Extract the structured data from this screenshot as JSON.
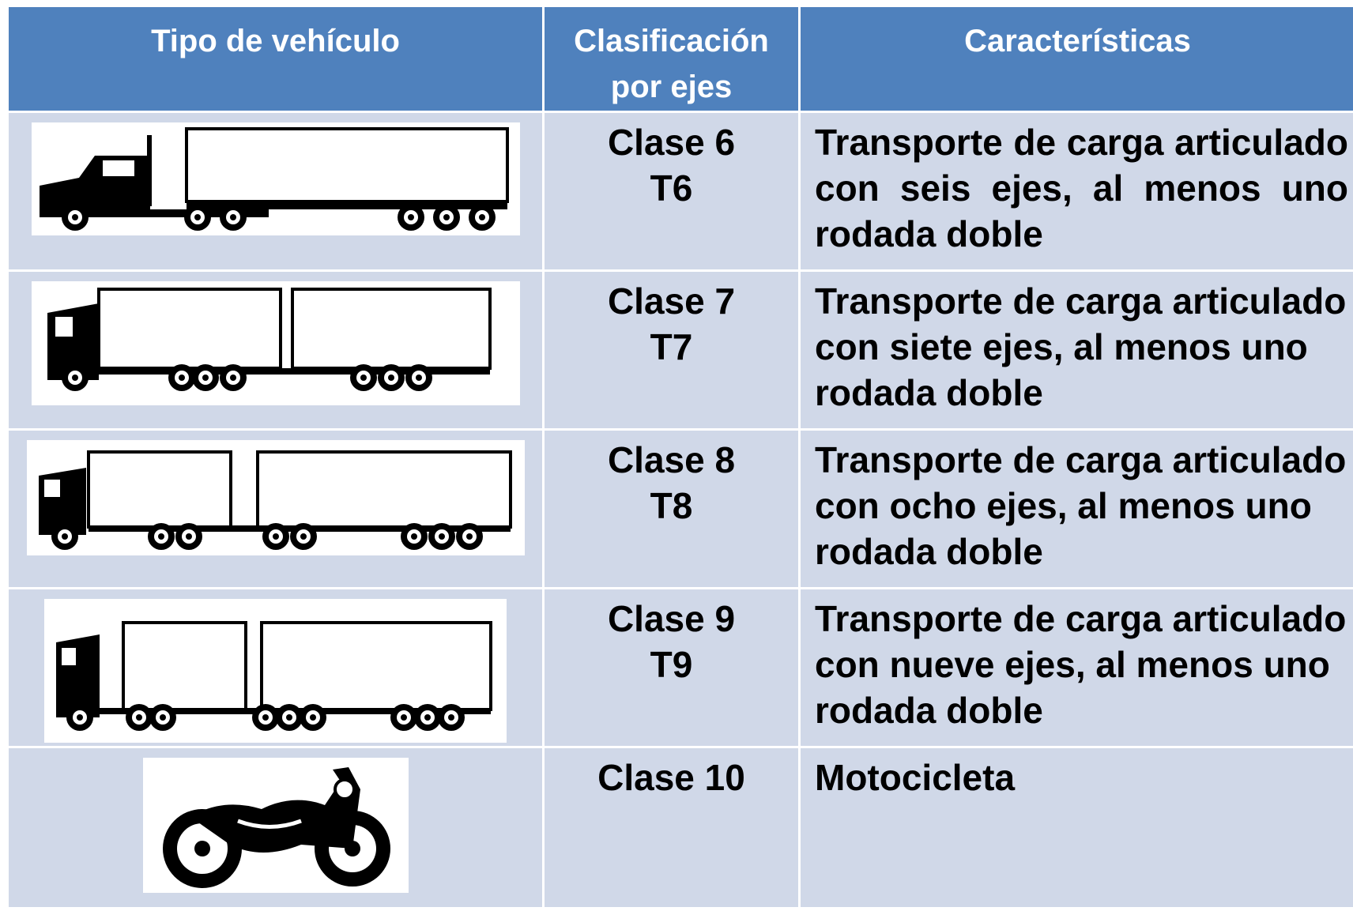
{
  "table": {
    "header": [
      "Tipo de vehículo",
      "Clasificación por ejes",
      "Características"
    ],
    "rows": [
      {
        "clase": "Clase 6",
        "code": "T6",
        "desc": "Transporte de carga articulado con seis ejes, al menos uno rodada doble"
      },
      {
        "clase": "Clase 7",
        "code": "T7",
        "desc": "Transporte de carga articulado con siete ejes, al menos uno rodada doble"
      },
      {
        "clase": "Clase 8",
        "code": "T8",
        "desc": "Transporte de carga articulado con ocho ejes, al menos uno rodada doble"
      },
      {
        "clase": "Clase 9",
        "code": "T9",
        "desc": "Transporte de carga articulado con nueve ejes,  al menos uno rodada doble"
      },
      {
        "clase": "Clase 10",
        "desc": "Motocicleta"
      }
    ]
  }
}
